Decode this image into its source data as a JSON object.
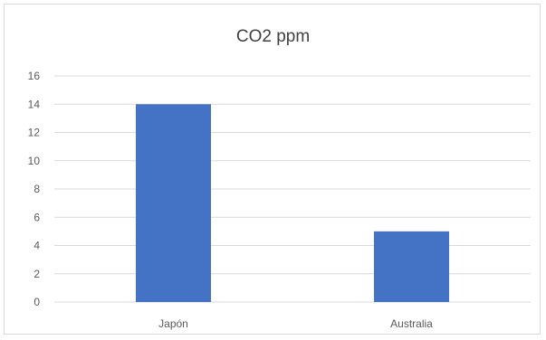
{
  "chart_data": {
    "type": "bar",
    "title": "CO2 ppm",
    "xlabel": "",
    "ylabel": "",
    "categories": [
      "Japón",
      "Australia"
    ],
    "values": [
      14,
      5
    ],
    "ylim": [
      0,
      16
    ],
    "yticks": [
      0,
      2,
      4,
      6,
      8,
      10,
      12,
      14,
      16
    ],
    "grid": true,
    "legend": "none",
    "colors": {
      "bar": "#4472c4",
      "grid": "#d9d9d9",
      "text": "#595959"
    }
  }
}
